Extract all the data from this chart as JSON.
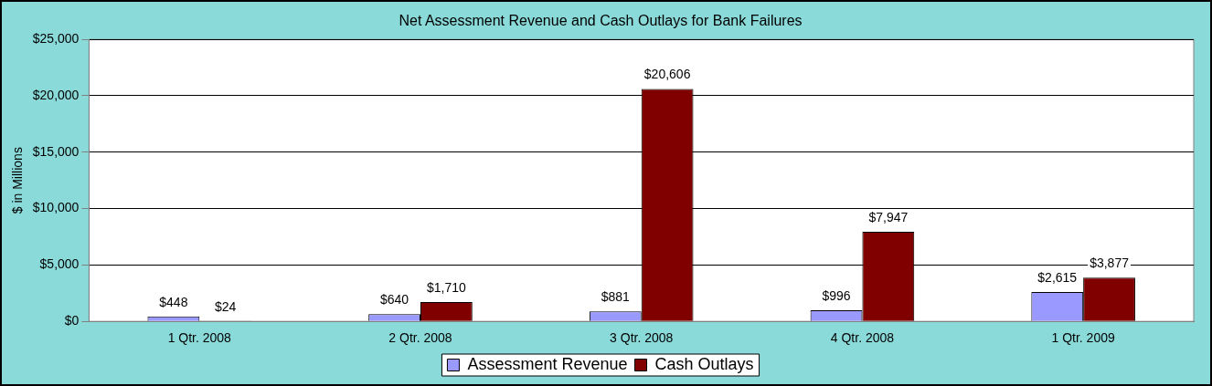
{
  "chart_data": {
    "type": "bar",
    "title": "Net Assessment Revenue and Cash Outlays for Bank Failures",
    "ylabel": "$ in Millions",
    "categories": [
      "1 Qtr. 2008",
      "2 Qtr. 2008",
      "3 Qtr. 2008",
      "4 Qtr. 2008",
      "1 Qtr. 2009"
    ],
    "series": [
      {
        "name": "Assessment Revenue",
        "color": "#9999ff",
        "values": [
          448,
          640,
          881,
          996,
          2615
        ],
        "value_labels": [
          "$448",
          "$640",
          "$881",
          "$996",
          "$2,615"
        ]
      },
      {
        "name": "Cash Outlays",
        "color": "#800000",
        "values": [
          24,
          1710,
          20606,
          7947,
          3877
        ],
        "value_labels": [
          "$24",
          "$1,710",
          "$20,606",
          "$7,947",
          "$3,877"
        ]
      }
    ],
    "ylim": [
      0,
      25000
    ],
    "yticks": [
      {
        "value": 0,
        "label": "$0"
      },
      {
        "value": 5000,
        "label": "$5,000"
      },
      {
        "value": 10000,
        "label": "$10,000"
      },
      {
        "value": 15000,
        "label": "$15,000"
      },
      {
        "value": 20000,
        "label": "$20,000"
      },
      {
        "value": 25000,
        "label": "$25,000"
      }
    ],
    "grid": "y",
    "legend": "bottom"
  }
}
